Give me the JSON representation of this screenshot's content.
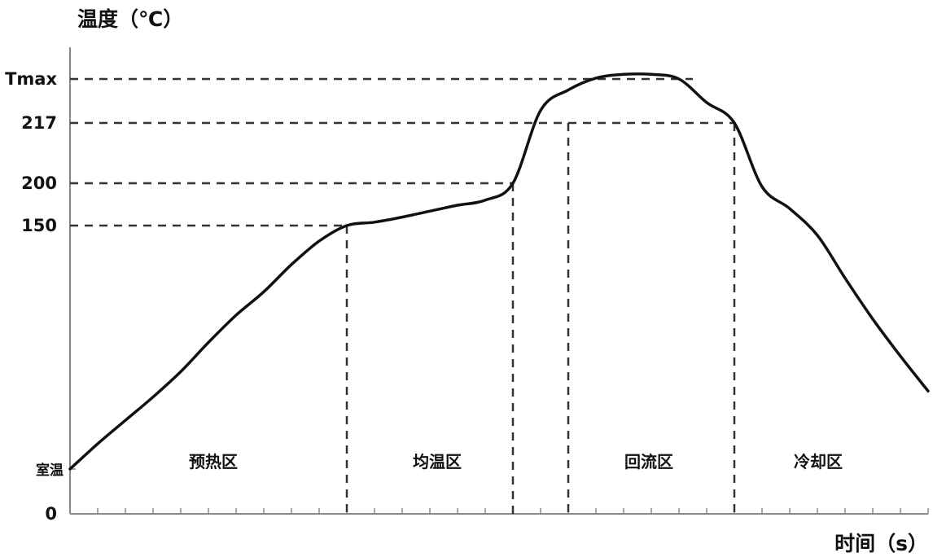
{
  "chart_data": {
    "type": "line",
    "title": "",
    "ylabel": "温度（℃）",
    "xlabel": "时间（s）",
    "y_ticks": [
      {
        "label": "Tmax",
        "value": 245
      },
      {
        "label": "217",
        "value": 217
      },
      {
        "label": "200",
        "value": 200
      },
      {
        "label": "150",
        "value": 150
      },
      {
        "label": "室温",
        "value": 25
      },
      {
        "label": "0",
        "value": 0
      }
    ],
    "zones": [
      {
        "label": "预热区",
        "x_start": 0,
        "x_end": 100
      },
      {
        "label": "均温区",
        "x_start": 100,
        "x_end": 160
      },
      {
        "label": "回流区",
        "x_start": 160,
        "x_end": 220
      },
      {
        "label": "冷却区",
        "x_start": 220,
        "x_end": 310
      }
    ],
    "x_boundaries": [
      100,
      160,
      180,
      240
    ],
    "x": [
      0,
      10,
      20,
      30,
      40,
      50,
      60,
      70,
      80,
      90,
      100,
      110,
      120,
      130,
      140,
      150,
      160,
      170,
      180,
      190,
      200,
      210,
      220,
      230,
      240,
      250,
      260,
      270,
      280,
      290,
      300,
      310
    ],
    "y": [
      25,
      38,
      50,
      62,
      75,
      90,
      104,
      116,
      130,
      142,
      150,
      154,
      160,
      167,
      174,
      180,
      200,
      225,
      238,
      246,
      250,
      250,
      245,
      230,
      217,
      196,
      170,
      145,
      123,
      102,
      83,
      65
    ],
    "xlim": [
      0,
      310
    ],
    "ylim": [
      0,
      260
    ],
    "grid": false,
    "legend": "none"
  }
}
